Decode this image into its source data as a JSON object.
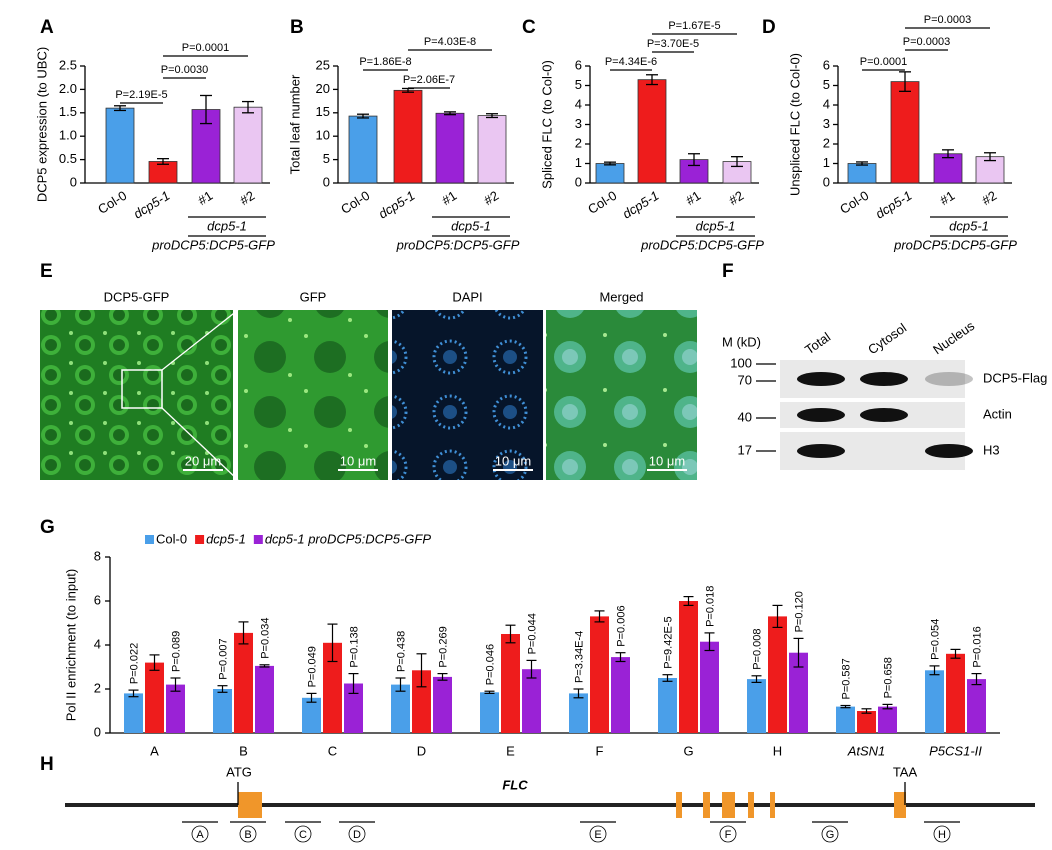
{
  "chart_data": [
    {
      "panel": "A",
      "type": "bar",
      "y_label": "DCP5 expression (to UBC)",
      "categories": [
        "Col-0",
        "dcp5-1",
        "#1",
        "#2"
      ],
      "values": [
        1.6,
        0.46,
        1.57,
        1.62
      ],
      "errors": [
        0.05,
        0.06,
        0.3,
        0.12
      ],
      "colors": [
        "#4a9fe9",
        "#ee1c1c",
        "#9a22d6",
        "#eac6f2"
      ],
      "ylim": [
        0,
        2.5
      ],
      "yticks": [
        0,
        0.5,
        {
          "value": 1,
          "label": "1.0"
        },
        1.5,
        {
          "value": 2,
          "label": "2.0"
        },
        2.5
      ],
      "comparisons": [
        "P=2.19E-5",
        "P=0.0030",
        "P=0.0001"
      ],
      "group_label": "dcp5-1",
      "construct_label": "proDCP5:DCP5-GFP"
    },
    {
      "panel": "B",
      "type": "bar",
      "y_label": "Total leaf number",
      "categories": [
        "Col-0",
        "dcp5-1",
        "#1",
        "#2"
      ],
      "values": [
        14.3,
        19.8,
        14.9,
        14.4
      ],
      "errors": [
        0.4,
        0.4,
        0.3,
        0.4
      ],
      "colors": [
        "#4a9fe9",
        "#ee1c1c",
        "#9a22d6",
        "#eac6f2"
      ],
      "ylim": [
        0,
        25
      ],
      "yticks": [
        0,
        5,
        10,
        15,
        20,
        25
      ],
      "comparisons": [
        "P=1.86E-8",
        "P=2.06E-7",
        "P=4.03E-8"
      ],
      "group_label": "dcp5-1",
      "construct_label": "proDCP5:DCP5-GFP"
    },
    {
      "panel": "C",
      "type": "bar",
      "y_label": "Spliced FLC (to Col-0)",
      "categories": [
        "Col-0",
        "dcp5-1",
        "#1",
        "#2"
      ],
      "values": [
        1.0,
        5.3,
        1.2,
        1.1
      ],
      "errors": [
        0.07,
        0.25,
        0.3,
        0.25
      ],
      "colors": [
        "#4a9fe9",
        "#ee1c1c",
        "#9a22d6",
        "#eac6f2"
      ],
      "ylim": [
        0,
        6
      ],
      "yticks": [
        0,
        1,
        2,
        3,
        4,
        5,
        6
      ],
      "comparisons": [
        "P=4.34E-6",
        "P=3.70E-5",
        "P=1.67E-5"
      ],
      "group_label": "dcp5-1",
      "construct_label": "proDCP5:DCP5-GFP"
    },
    {
      "panel": "D",
      "type": "bar",
      "y_label": "Unspliced FLC (to Col-0)",
      "categories": [
        "Col-0",
        "dcp5-1",
        "#1",
        "#2"
      ],
      "values": [
        1.0,
        5.2,
        1.5,
        1.35
      ],
      "errors": [
        0.08,
        0.5,
        0.2,
        0.2
      ],
      "colors": [
        "#4a9fe9",
        "#ee1c1c",
        "#9a22d6",
        "#eac6f2"
      ],
      "ylim": [
        0,
        6
      ],
      "yticks": [
        0,
        1,
        2,
        3,
        4,
        5,
        6
      ],
      "comparisons": [
        "P=0.0001",
        "P=0.0003",
        "P=0.0003"
      ],
      "group_label": "dcp5-1",
      "construct_label": "proDCP5:DCP5-GFP"
    },
    {
      "panel": "G",
      "type": "grouped_bar",
      "y_label": "Pol II enrichment (to input)",
      "categories": [
        "A",
        "B",
        "C",
        "D",
        "E",
        "F",
        "G",
        "H",
        "AtSN1",
        "P5CS1-II"
      ],
      "series": [
        {
          "name": "Col-0",
          "color": "#4a9fe9",
          "values": [
            1.8,
            2.0,
            1.6,
            2.2,
            1.85,
            1.8,
            2.5,
            2.45,
            1.2,
            2.85
          ],
          "errors": [
            0.15,
            0.15,
            0.2,
            0.3,
            0.05,
            0.2,
            0.15,
            0.15,
            0.05,
            0.2
          ]
        },
        {
          "name": "dcp5-1",
          "color": "#ee1c1c",
          "values": [
            3.2,
            4.55,
            4.1,
            2.85,
            4.5,
            5.3,
            6.0,
            5.3,
            1.0,
            3.6
          ],
          "errors": [
            0.35,
            0.5,
            0.85,
            0.75,
            0.4,
            0.25,
            0.2,
            0.5,
            0.1,
            0.2
          ]
        },
        {
          "name": "dcp5-1 proDCP5:DCP5-GFP",
          "color": "#9a22d6",
          "values": [
            2.2,
            3.05,
            2.25,
            2.55,
            2.9,
            3.45,
            4.15,
            3.65,
            1.2,
            2.45
          ],
          "errors": [
            0.3,
            0.05,
            0.45,
            0.15,
            0.4,
            0.2,
            0.4,
            0.65,
            0.1,
            0.25
          ]
        }
      ],
      "p_values": [
        [
          "P=0.022",
          "P=0.089"
        ],
        [
          "P=0.007",
          "P=0.034"
        ],
        [
          "P=0.049",
          "P=0.138"
        ],
        [
          "P=0.438",
          "P=0.269"
        ],
        [
          "P=0.046",
          "P=0.044"
        ],
        [
          "P=3.34E-4",
          "P=0.006"
        ],
        [
          "P=9.42E-5",
          "P=0.018"
        ],
        [
          "P=0.008",
          "P=0.120"
        ],
        [
          "P=0.587",
          "P=0.658"
        ],
        [
          "P=0.054",
          "P=0.016"
        ]
      ],
      "ylim": [
        0,
        8
      ],
      "yticks": [
        0,
        2,
        4,
        6,
        8
      ]
    }
  ],
  "microscopy": {
    "panel": "E",
    "images": [
      {
        "title": "DCP5-GFP",
        "scale_bar": "20 μm"
      },
      {
        "title": "GFP",
        "scale_bar": "10 μm"
      },
      {
        "title": "DAPI",
        "scale_bar": "10 μm"
      },
      {
        "title": "Merged",
        "scale_bar": "10 μm"
      }
    ]
  },
  "western_blot": {
    "panel": "F",
    "marker_title": "M (kD)",
    "markers": [
      100,
      70,
      40,
      17
    ],
    "lanes": [
      "Total",
      "Cytosol",
      "Nucleus"
    ],
    "rows": [
      "DCP5-Flag",
      "Actin",
      "H3"
    ]
  },
  "gene_diagram": {
    "panel": "H",
    "gene": "FLC",
    "start_codon": "ATG",
    "stop_codon": "TAA",
    "regions": [
      "A",
      "B",
      "C",
      "D",
      "E",
      "F",
      "G",
      "H"
    ]
  }
}
